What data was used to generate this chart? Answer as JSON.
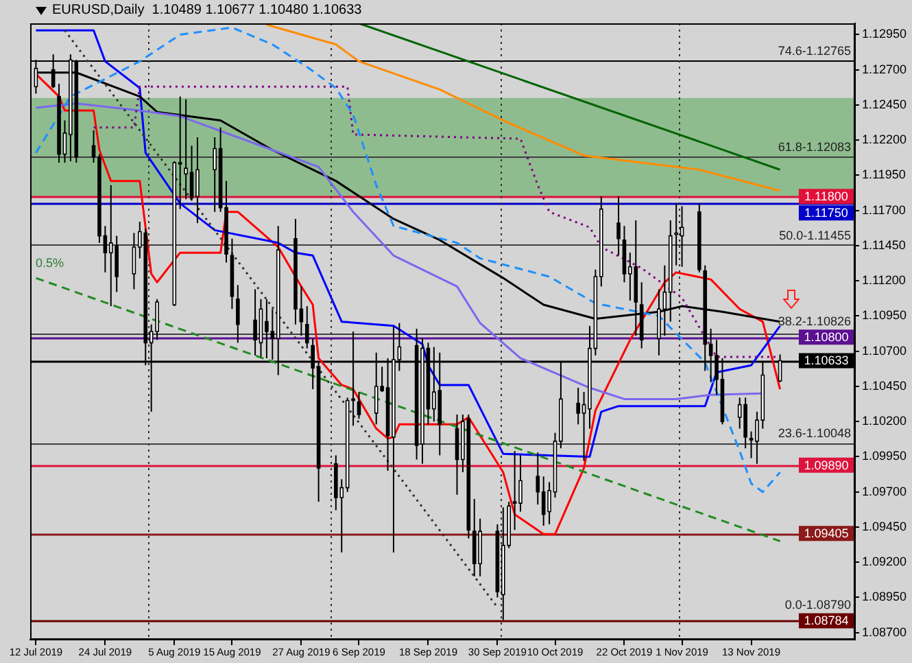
{
  "chart_data": {
    "type": "candlestick",
    "title": "EURUSD,Daily  1.10489 1.10677 1.10480 1.10633",
    "x": [
      "2019-07-12",
      "2019-07-15",
      "2019-07-16",
      "2019-07-17",
      "2019-07-18",
      "2019-07-19",
      "2019-07-22",
      "2019-07-23",
      "2019-07-24",
      "2019-07-25",
      "2019-07-26",
      "2019-07-29",
      "2019-07-30",
      "2019-07-31",
      "2019-08-01",
      "2019-08-02",
      "2019-08-05",
      "2019-08-06",
      "2019-08-07",
      "2019-08-08",
      "2019-08-09",
      "2019-08-12",
      "2019-08-13",
      "2019-08-14",
      "2019-08-15",
      "2019-08-16",
      "2019-08-19",
      "2019-08-20",
      "2019-08-21",
      "2019-08-22",
      "2019-08-23",
      "2019-08-26",
      "2019-08-27",
      "2019-08-28",
      "2019-08-29",
      "2019-08-30",
      "2019-09-02",
      "2019-09-03",
      "2019-09-04",
      "2019-09-05",
      "2019-09-06",
      "2019-09-09",
      "2019-09-10",
      "2019-09-11",
      "2019-09-12",
      "2019-09-13",
      "2019-09-16",
      "2019-09-17",
      "2019-09-18",
      "2019-09-19",
      "2019-09-20",
      "2019-09-23",
      "2019-09-24",
      "2019-09-25",
      "2019-09-26",
      "2019-09-27",
      "2019-09-30",
      "2019-10-01",
      "2019-10-02",
      "2019-10-03",
      "2019-10-04",
      "2019-10-07",
      "2019-10-08",
      "2019-10-09",
      "2019-10-10",
      "2019-10-11",
      "2019-10-14",
      "2019-10-15",
      "2019-10-16",
      "2019-10-17",
      "2019-10-18",
      "2019-10-21",
      "2019-10-22",
      "2019-10-23",
      "2019-10-24",
      "2019-10-25",
      "2019-10-28",
      "2019-10-29",
      "2019-10-30",
      "2019-10-31",
      "2019-11-01",
      "2019-11-04",
      "2019-11-05",
      "2019-11-06",
      "2019-11-07",
      "2019-11-08",
      "2019-11-11",
      "2019-11-12",
      "2019-11-13",
      "2019-11-14",
      "2019-11-15",
      "2019-11-18"
    ],
    "ohlc": [
      [
        1.1258,
        1.1277,
        1.1253,
        1.1271
      ],
      [
        1.127,
        1.1281,
        1.1257,
        1.1258
      ],
      [
        1.1251,
        1.126,
        1.1204,
        1.121
      ],
      [
        1.121,
        1.1234,
        1.1204,
        1.1225
      ],
      [
        1.1224,
        1.1281,
        1.1205,
        1.1277
      ],
      [
        1.1276,
        1.1277,
        1.1204,
        1.1208
      ],
      [
        1.1216,
        1.1227,
        1.1204,
        1.1208
      ],
      [
        1.1208,
        1.121,
        1.1147,
        1.1152
      ],
      [
        1.1152,
        1.1159,
        1.1126,
        1.114
      ],
      [
        1.114,
        1.1188,
        1.1102,
        1.1147
      ],
      [
        1.1145,
        1.1152,
        1.1112,
        1.1123
      ],
      [
        1.1125,
        1.1154,
        1.1114,
        1.1144
      ],
      [
        1.1144,
        1.1162,
        1.1136,
        1.1155
      ],
      [
        1.1154,
        1.1157,
        1.106,
        1.1076
      ],
      [
        1.1076,
        1.1089,
        1.1027,
        1.1084
      ],
      [
        1.1084,
        1.1107,
        1.1078,
        1.1105
      ],
      [
        1.1103,
        1.1205,
        1.1102,
        1.1204
      ],
      [
        1.1204,
        1.1251,
        1.1171,
        1.1203
      ],
      [
        1.1196,
        1.1249,
        1.1178,
        1.12
      ],
      [
        1.1197,
        1.1216,
        1.1177,
        1.1179
      ],
      [
        1.118,
        1.1222,
        1.1161,
        1.1199
      ],
      [
        1.1199,
        1.1222,
        1.1169,
        1.1214
      ],
      [
        1.1214,
        1.1229,
        1.1169,
        1.1172
      ],
      [
        1.1172,
        1.1191,
        1.1133,
        1.1139
      ],
      [
        1.1138,
        1.115,
        1.11,
        1.1109
      ],
      [
        1.1107,
        1.1117,
        1.1076,
        1.1089
      ],
      [
        1.1092,
        1.1114,
        1.1067,
        1.1078
      ],
      [
        1.1076,
        1.1107,
        1.1066,
        1.11
      ],
      [
        1.1091,
        1.1107,
        1.1065,
        1.1084
      ],
      [
        1.1084,
        1.11,
        1.1064,
        1.1079
      ],
      [
        1.1079,
        1.1159,
        1.1053,
        1.1142
      ],
      [
        1.115,
        1.1164,
        1.1089,
        1.11
      ],
      [
        1.11,
        1.1116,
        1.1081,
        1.1091
      ],
      [
        1.1089,
        1.1102,
        1.1072,
        1.1076
      ],
      [
        1.1074,
        1.1079,
        1.1043,
        1.1058
      ],
      [
        1.1059,
        1.1062,
        1.0963,
        1.0987
      ],
      [
        1.099,
        1.0996,
        1.0957,
        1.0966
      ],
      [
        1.0966,
        1.0979,
        1.0927,
        1.0973
      ],
      [
        1.0973,
        1.1037,
        1.097,
        1.1035
      ],
      [
        1.1036,
        1.1084,
        1.1017,
        1.1035
      ],
      [
        1.1034,
        1.1041,
        1.1022,
        1.1025
      ],
      [
        1.1026,
        1.1069,
        1.1018,
        1.1045
      ],
      [
        1.1045,
        1.1059,
        1.1041,
        1.1042
      ],
      [
        1.1044,
        1.1065,
        1.0985,
        1.101
      ],
      [
        1.1009,
        1.1088,
        1.0927,
        1.1064
      ],
      [
        1.1064,
        1.109,
        1.1056,
        1.1073
      ],
      [
        1.1074,
        1.1086,
        1.0993,
        1.1003
      ],
      [
        1.1004,
        1.1079,
        1.099,
        1.1072
      ],
      [
        1.1072,
        1.1076,
        1.1018,
        1.1029
      ],
      [
        1.1029,
        1.1073,
        1.102,
        1.1041
      ],
      [
        1.1042,
        1.1069,
        1.0996,
        1.1018
      ],
      [
        1.1015,
        1.1025,
        1.0968,
        1.0993
      ],
      [
        1.0993,
        1.1025,
        1.0984,
        1.102
      ],
      [
        1.1022,
        1.1025,
        1.0937,
        1.0943
      ],
      [
        1.0942,
        1.0965,
        1.091,
        1.0919
      ],
      [
        1.0919,
        1.0951,
        1.091,
        1.0942
      ],
      [
        1.0942,
        1.0947,
        1.0895,
        1.0899
      ],
      [
        1.0897,
        1.0959,
        1.0879,
        1.0932
      ],
      [
        1.0932,
        1.0963,
        1.093,
        1.096
      ],
      [
        1.0962,
        1.0999,
        1.0943,
        1.0963
      ],
      [
        1.0962,
        1.0996,
        1.0956,
        1.0978
      ],
      [
        1.0981,
        1.0998,
        1.0961,
        1.097
      ],
      [
        1.097,
        1.0981,
        1.0946,
        1.0954
      ],
      [
        1.0956,
        1.0977,
        1.0947,
        1.0971
      ],
      [
        1.097,
        1.1012,
        1.0966,
        1.1006
      ],
      [
        1.1006,
        1.1062,
        1.1001,
        1.1036
      ],
      [
        1.1033,
        1.1044,
        1.1018,
        1.1026
      ],
      [
        1.1026,
        1.1041,
        1.0992,
        1.1032
      ],
      [
        1.1029,
        1.1088,
        1.1015,
        1.1072
      ],
      [
        1.1072,
        1.1128,
        1.1067,
        1.1123
      ],
      [
        1.1123,
        1.118,
        1.1116,
        1.1171
      ],
      [
        1.1161,
        1.118,
        1.1138,
        1.115
      ],
      [
        1.1149,
        1.1159,
        1.1119,
        1.1125
      ],
      [
        1.1125,
        1.114,
        1.1106,
        1.113
      ],
      [
        1.113,
        1.1163,
        1.1081,
        1.1105
      ],
      [
        1.1103,
        1.1119,
        1.1072,
        1.1078
      ],
      [
        1.1079,
        1.1114,
        1.1067,
        1.11
      ],
      [
        1.11,
        1.1131,
        1.1081,
        1.1112
      ],
      [
        1.1112,
        1.1163,
        1.1091,
        1.1152
      ],
      [
        1.1153,
        1.1175,
        1.1131,
        1.1154
      ],
      [
        1.1152,
        1.1173,
        1.113,
        1.1158
      ],
      [
        1.1169,
        1.1175,
        1.1126,
        1.1128
      ],
      [
        1.1127,
        1.1131,
        1.1056,
        1.1075
      ],
      [
        1.1075,
        1.1086,
        1.1048,
        1.1067
      ],
      [
        1.1067,
        1.1078,
        1.1039,
        1.105
      ],
      [
        1.105,
        1.1065,
        1.1018,
        1.102
      ],
      [
        1.1023,
        1.1037,
        1.1015,
        1.1032
      ],
      [
        1.1032,
        1.1037,
        1.1001,
        1.1009
      ],
      [
        1.1008,
        1.1013,
        1.0994,
        1.1007
      ],
      [
        1.1006,
        1.1027,
        1.099,
        1.1021
      ],
      [
        1.1021,
        1.1063,
        1.1015,
        1.1053
      ],
      [
        1.10489,
        1.10677,
        1.1048,
        1.10633
      ]
    ],
    "series": [
      {
        "type": "line",
        "color": "#1e90ff",
        "line_style": "dashed",
        "x": [
          "2019-07-12",
          "2019-07-18",
          "2019-07-30",
          "2019-08-06",
          "2019-08-15",
          "2019-08-22",
          "2019-08-28",
          "2019-09-02",
          "2019-09-05",
          "2019-09-09",
          "2019-09-12",
          "2019-09-23",
          "2019-09-27",
          "2019-10-09",
          "2019-10-17",
          "2019-10-28",
          "2019-11-05",
          "2019-11-11",
          "2019-11-13",
          "2019-11-15",
          "2019-11-18"
        ],
        "values": [
          1.1211,
          1.1251,
          1.1276,
          1.1295,
          1.13,
          1.1288,
          1.1272,
          1.1257,
          1.1238,
          1.1188,
          1.1159,
          1.1147,
          1.1136,
          1.1123,
          1.1104,
          1.1095,
          1.1062,
          1.0999,
          1.0976,
          1.097,
          1.0984
        ]
      },
      {
        "type": "line",
        "color": "#800080",
        "line_style": "dotted",
        "x": [
          "2019-07-22",
          "2019-07-29",
          "2019-07-30",
          "2019-09-04",
          "2019-09-05",
          "2019-10-04",
          "2019-10-07",
          "2019-10-09",
          "2019-10-16",
          "2019-10-18",
          "2019-10-25",
          "2019-11-01",
          "2019-11-07",
          "2019-11-18"
        ],
        "values": [
          1.1229,
          1.1229,
          1.1258,
          1.1258,
          1.1224,
          1.1221,
          1.1188,
          1.1169,
          1.1158,
          1.1144,
          1.1129,
          1.1108,
          1.1066,
          1.1066
        ]
      },
      {
        "type": "line",
        "color": "#303030",
        "line_style": "dotted",
        "x": [
          "2019-07-17",
          "2019-09-30"
        ],
        "values": [
          1.1298,
          1.0888
        ]
      },
      {
        "type": "line",
        "color": "#228b22",
        "line_style": "dashed",
        "x": [
          "2019-07-12",
          "2019-11-18"
        ],
        "values": [
          1.1122,
          1.0935
        ]
      },
      {
        "type": "line",
        "color": "#ff8c00",
        "x": [
          "2019-08-21",
          "2019-09-02",
          "2019-09-06",
          "2019-09-20",
          "2019-10-01",
          "2019-10-15",
          "2019-11-04",
          "2019-11-18"
        ],
        "values": [
          1.1302,
          1.1288,
          1.1276,
          1.1256,
          1.1234,
          1.1209,
          1.1199,
          1.1184
        ]
      },
      {
        "type": "line",
        "color": "#006400",
        "x": [
          "2019-09-06",
          "2019-11-18"
        ],
        "values": [
          1.1303,
          1.1199
        ]
      },
      {
        "type": "line",
        "color": "#7b68ee",
        "x": [
          "2019-07-12",
          "2019-07-19",
          "2019-07-30",
          "2019-08-06",
          "2019-08-22",
          "2019-08-30",
          "2019-09-05",
          "2019-09-12",
          "2019-09-23",
          "2019-09-27",
          "2019-10-04",
          "2019-10-16",
          "2019-10-22",
          "2019-10-31",
          "2019-11-06",
          "2019-11-15"
        ],
        "values": [
          1.1243,
          1.1246,
          1.1241,
          1.1237,
          1.1213,
          1.1201,
          1.1169,
          1.1138,
          1.1116,
          1.109,
          1.1065,
          1.1044,
          1.1036,
          1.1036,
          1.1039,
          1.104
        ]
      },
      {
        "type": "line",
        "color": "#000000",
        "x": [
          "2019-07-12",
          "2019-07-19",
          "2019-07-30",
          "2019-08-02",
          "2019-08-13",
          "2019-08-22",
          "2019-09-02",
          "2019-09-12",
          "2019-09-20",
          "2019-10-01",
          "2019-10-08",
          "2019-10-17",
          "2019-10-28",
          "2019-11-01",
          "2019-11-08",
          "2019-11-18"
        ],
        "values": [
          1.1268,
          1.1268,
          1.1251,
          1.124,
          1.1234,
          1.1213,
          1.1191,
          1.1164,
          1.1149,
          1.1122,
          1.1103,
          1.1093,
          1.1098,
          1.1102,
          1.1098,
          1.1091
        ]
      },
      {
        "type": "line",
        "color": "#0000ff",
        "x": [
          "2019-07-12",
          "2019-07-22",
          "2019-07-24",
          "2019-07-30",
          "2019-07-31",
          "2019-08-06",
          "2019-08-12",
          "2019-08-23",
          "2019-08-26",
          "2019-08-29",
          "2019-09-03",
          "2019-09-12",
          "2019-09-17",
          "2019-09-18",
          "2019-09-20",
          "2019-09-25",
          "2019-10-01",
          "2019-10-16",
          "2019-10-18",
          "2019-10-21",
          "2019-11-05",
          "2019-11-07",
          "2019-11-13",
          "2019-11-18"
        ],
        "values": [
          1.1298,
          1.1298,
          1.1276,
          1.1257,
          1.1211,
          1.1175,
          1.1156,
          1.1147,
          1.114,
          1.1138,
          1.1091,
          1.1088,
          1.1075,
          1.106,
          1.1046,
          1.1046,
          1.0997,
          1.0995,
          1.1027,
          1.1031,
          1.1031,
          1.1055,
          1.106,
          1.1088
        ]
      },
      {
        "type": "line",
        "color": "#ff0000",
        "x": [
          "2019-07-12",
          "2019-07-16",
          "2019-07-17",
          "2019-07-22",
          "2019-07-23",
          "2019-07-25",
          "2019-07-30",
          "2019-08-01",
          "2019-08-02",
          "2019-08-06",
          "2019-08-13",
          "2019-08-14",
          "2019-08-16",
          "2019-08-23",
          "2019-08-27",
          "2019-08-29",
          "2019-08-30",
          "2019-09-03",
          "2019-09-05",
          "2019-09-09",
          "2019-09-11",
          "2019-09-12",
          "2019-09-13",
          "2019-09-23",
          "2019-09-25",
          "2019-10-01",
          "2019-10-03",
          "2019-10-08",
          "2019-10-10",
          "2019-10-15",
          "2019-10-17",
          "2019-10-23",
          "2019-10-29",
          "2019-10-31",
          "2019-11-06",
          "2019-11-11",
          "2019-11-15",
          "2019-11-18"
        ],
        "values": [
          1.1267,
          1.1251,
          1.1241,
          1.1241,
          1.1213,
          1.1191,
          1.1191,
          1.1125,
          1.1119,
          1.114,
          1.114,
          1.1169,
          1.1169,
          1.1144,
          1.1116,
          1.1103,
          1.1065,
          1.1046,
          1.1043,
          1.1015,
          1.1008,
          1.1009,
          1.1018,
          1.1018,
          1.1023,
          1.0984,
          1.0954,
          1.094,
          1.094,
          1.0987,
          1.1028,
          1.1078,
          1.1119,
          1.1126,
          1.1121,
          1.11,
          1.1091,
          1.1043
        ]
      }
    ],
    "bands": [
      {
        "axis": "y",
        "from": 1.118,
        "to": 1.125,
        "color": "#8fbc8f"
      }
    ],
    "ref_lines": [
      {
        "axis": "y",
        "value": 1.12765,
        "color": "#000000"
      },
      {
        "axis": "y",
        "value": 1.12083,
        "color": "#404040"
      },
      {
        "axis": "y",
        "value": 1.11455,
        "color": "#404040"
      },
      {
        "axis": "y",
        "value": 1.10826,
        "color": "#404040"
      },
      {
        "axis": "y",
        "value": 1.10048,
        "color": "#404040"
      },
      {
        "axis": "y",
        "value": 1.118,
        "label": "1.11800",
        "color": "#e0103a"
      },
      {
        "axis": "y",
        "value": 1.1175,
        "label": "1.11750",
        "color": "#0000c8"
      },
      {
        "axis": "y",
        "value": 1.108,
        "label": "1.10800",
        "color": "#5b0f91"
      },
      {
        "axis": "y",
        "value": 1.10633,
        "label": "1.10633",
        "color": "#000000"
      },
      {
        "axis": "y",
        "value": 1.0989,
        "label": "1.09890",
        "color": "#dc143c"
      },
      {
        "axis": "y",
        "value": 1.09405,
        "label": "1.09405",
        "color": "#8b1a1a"
      },
      {
        "axis": "y",
        "value": 1.08784,
        "label": "1.08784",
        "color": "#6b0000"
      },
      {
        "axis": "x",
        "value": "2019-07-31T12:00",
        "color": "#303030",
        "line_style": "dotted"
      },
      {
        "axis": "x",
        "value": "2019-09-01T00:00",
        "color": "#303030",
        "line_style": "dotted"
      },
      {
        "axis": "x",
        "value": "2019-09-30T12:00",
        "color": "#303030",
        "line_style": "dotted"
      },
      {
        "axis": "x",
        "value": "2019-10-31T12:00",
        "color": "#303030",
        "line_style": "dotted"
      }
    ],
    "annotations": [
      {
        "text": "74.6-1.12765",
        "x": "2019-11-18",
        "y": 1.12765
      },
      {
        "text": "61.8-1.12083",
        "x": "2019-11-18",
        "y": 1.12083
      },
      {
        "text": "50.0-1.11455",
        "x": "2019-11-18",
        "y": 1.11455
      },
      {
        "text": "38.2-1.10826",
        "x": "2019-11-18",
        "y": 1.10826
      },
      {
        "text": "23.6-1.10048",
        "x": "2019-11-18",
        "y": 1.10048
      },
      {
        "text": "0.0-1.08790",
        "x": "2019-11-18",
        "y": 1.0879
      },
      "0.5%"
    ],
    "xlim": [
      "2019-07-11",
      "2019-12-01"
    ],
    "ylim": [
      1.0865,
      1.1303
    ],
    "yticks": [
      {
        "value": 1.1295,
        "label": "1.12950"
      },
      {
        "value": 1.127,
        "label": "1.12700"
      },
      {
        "value": 1.1245,
        "label": "1.12450"
      },
      {
        "value": 1.122,
        "label": "1.12200"
      },
      {
        "value": 1.1195,
        "label": "1.11950"
      },
      {
        "value": 1.117,
        "label": "1.11700"
      },
      {
        "value": 1.1145,
        "label": "1.11450"
      },
      {
        "value": 1.112,
        "label": "1.11200"
      },
      {
        "value": 1.1095,
        "label": "1.10950"
      },
      {
        "value": 1.107,
        "label": "1.10700"
      },
      {
        "value": 1.1045,
        "label": "1.10450"
      },
      {
        "value": 1.102,
        "label": "1.10200"
      },
      {
        "value": 1.0995,
        "label": "1.09950"
      },
      {
        "value": 1.097,
        "label": "1.09700"
      },
      {
        "value": 1.0945,
        "label": "1.09450"
      },
      {
        "value": 1.092,
        "label": "1.09200"
      },
      {
        "value": 1.0895,
        "label": "1.08950"
      },
      {
        "value": 1.087,
        "label": "1.08700"
      }
    ],
    "xticks": [
      {
        "value": "2019-07-12",
        "label": "12 Jul 2019"
      },
      {
        "value": "2019-07-24",
        "label": "24 Jul 2019"
      },
      {
        "value": "2019-08-05",
        "label": "5 Aug 2019"
      },
      {
        "value": "2019-08-15",
        "label": "15 Aug 2019"
      },
      {
        "value": "2019-08-27",
        "label": "27 Aug 2019"
      },
      {
        "value": "2019-09-06",
        "label": "6 Sep 2019"
      },
      {
        "value": "2019-09-18",
        "label": "18 Sep 2019"
      },
      {
        "value": "2019-09-30",
        "label": "30 Sep 2019"
      },
      {
        "value": "2019-10-10",
        "label": "10 Oct 2019"
      },
      {
        "value": "2019-10-22",
        "label": "22 Oct 2019"
      },
      {
        "value": "2019-11-01",
        "label": "1 Nov 2019"
      },
      {
        "value": "2019-11-13",
        "label": "13 Nov 2019"
      }
    ]
  }
}
